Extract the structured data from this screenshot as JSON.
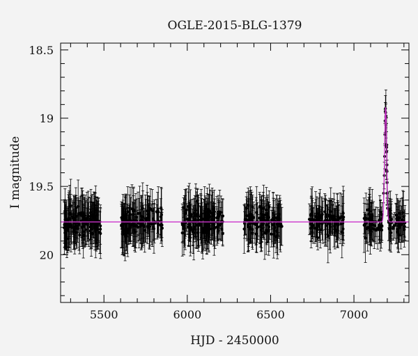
{
  "chart_data": {
    "type": "scatter",
    "title": "OGLE-2015-BLG-1379",
    "xlabel": "HJD - 2450000",
    "ylabel": "I magnitude",
    "xlim": [
      5240,
      7330
    ],
    "ylim": [
      20.35,
      18.45
    ],
    "y_axis_inverted": true,
    "x_ticks": [
      5500,
      6000,
      6500,
      7000
    ],
    "y_ticks": [
      18.5,
      19,
      19.5,
      20
    ],
    "y_tick_labels": [
      "18.5",
      "19",
      "19.5",
      "20"
    ],
    "baseline_mag": 19.76,
    "colors": {
      "points": "#000000",
      "model": "#cc33cc",
      "frame": "#000000",
      "background": "#f3f3f3"
    },
    "seasons": [
      {
        "start": 5260,
        "end": 5480,
        "n": 150
      },
      {
        "start": 5600,
        "end": 5850,
        "n": 120
      },
      {
        "start": 5970,
        "end": 6220,
        "n": 140
      },
      {
        "start": 6340,
        "end": 6570,
        "n": 110
      },
      {
        "start": 6730,
        "end": 6940,
        "n": 100
      },
      {
        "start": 7060,
        "end": 7310,
        "n": 95
      }
    ],
    "event": {
      "peak_time": 7190,
      "peak_mag": 18.92,
      "points": [
        [
          7178,
          19.55
        ],
        [
          7182,
          19.42
        ],
        [
          7184,
          19.28
        ],
        [
          7186,
          19.12
        ],
        [
          7187,
          19.02
        ],
        [
          7188,
          18.95
        ],
        [
          7189,
          18.93
        ],
        [
          7190,
          18.96
        ],
        [
          7191,
          19.05
        ],
        [
          7193,
          19.2
        ],
        [
          7195,
          19.38
        ],
        [
          7198,
          19.55
        ],
        [
          7202,
          19.66
        ]
      ]
    }
  }
}
